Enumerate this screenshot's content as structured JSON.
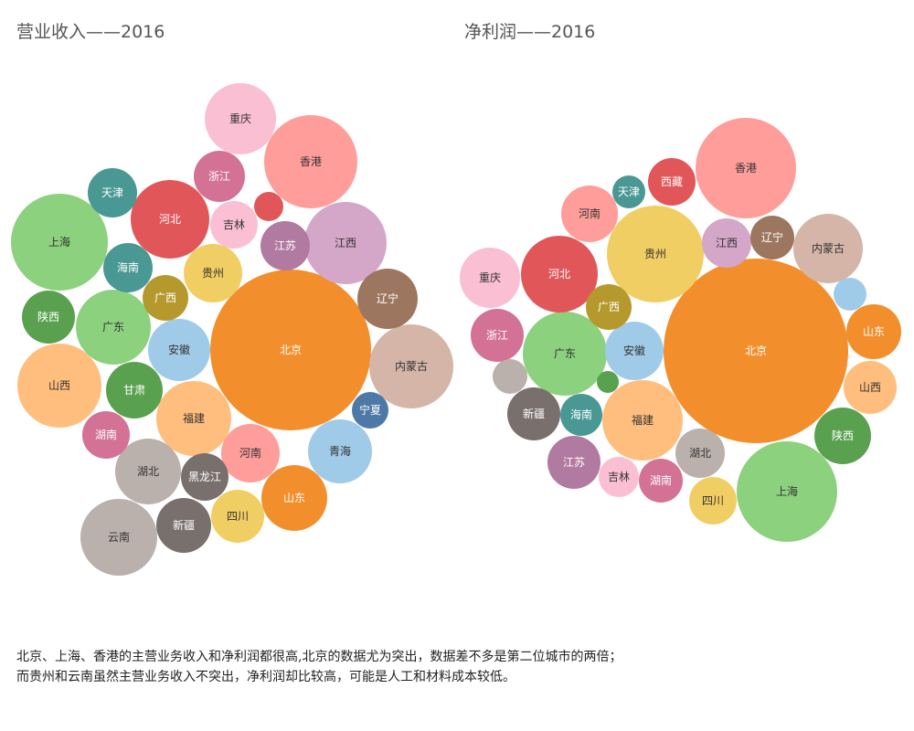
{
  "chart_data": [
    {
      "type": "bubble",
      "title": "营业收入——2016",
      "bubbles": [
        {
          "name": "北京",
          "color": "#f28e2b"
        },
        {
          "name": "香港",
          "color": "#ff9d9a"
        },
        {
          "name": "内蒙古",
          "color": "#d4b5a8"
        },
        {
          "name": "云南",
          "color": "#bab0ac"
        },
        {
          "name": "上海",
          "color": "#8cd17d"
        },
        {
          "name": "江西",
          "color": "#d4a6c8"
        },
        {
          "name": "重庆",
          "color": "#fabfd2"
        },
        {
          "name": "山西",
          "color": "#ffbe7d"
        },
        {
          "name": "河北",
          "color": "#e15759"
        },
        {
          "name": "广东",
          "color": "#8cd17d"
        },
        {
          "name": "福建",
          "color": "#ffbe7d"
        },
        {
          "name": "安徽",
          "color": "#a0cbe8"
        },
        {
          "name": "青海",
          "color": "#a0cbe8"
        },
        {
          "name": "山东",
          "color": "#f28e2b"
        },
        {
          "name": "湖北",
          "color": "#bab0ac"
        },
        {
          "name": "辽宁",
          "color": "#9d7660"
        },
        {
          "name": "河南",
          "color": "#ff9d9a"
        },
        {
          "name": "贵州",
          "color": "#f1ce63"
        },
        {
          "name": "甘肃",
          "color": "#59a14f"
        },
        {
          "name": "四川",
          "color": "#f1ce63"
        },
        {
          "name": "新疆",
          "color": "#79706e"
        },
        {
          "name": "海南",
          "color": "#499894"
        },
        {
          "name": "陕西",
          "color": "#59a14f"
        },
        {
          "name": "江苏",
          "color": "#b07aa1"
        },
        {
          "name": "浙江",
          "color": "#d37295"
        },
        {
          "name": "湖南",
          "color": "#d37295"
        },
        {
          "name": "黑龙江",
          "color": "#79706e"
        },
        {
          "name": "吉林",
          "color": "#fabfd2"
        },
        {
          "name": "天津",
          "color": "#499894"
        },
        {
          "name": "广西",
          "color": "#b6992d"
        },
        {
          "name": "宁夏",
          "color": "#4e79a7"
        },
        {
          "name": "",
          "color": "#e15759"
        }
      ]
    },
    {
      "type": "bubble",
      "title": "净利润——2016",
      "bubbles": [
        {
          "name": "北京",
          "color": "#f28e2b"
        },
        {
          "name": "上海",
          "color": "#8cd17d"
        },
        {
          "name": "香港",
          "color": "#ff9d9a"
        },
        {
          "name": "贵州",
          "color": "#f1ce63"
        },
        {
          "name": "广东",
          "color": "#8cd17d"
        },
        {
          "name": "福建",
          "color": "#ffbe7d"
        },
        {
          "name": "河北",
          "color": "#e15759"
        },
        {
          "name": "内蒙古",
          "color": "#d4b5a8"
        },
        {
          "name": "安徽",
          "color": "#a0cbe8"
        },
        {
          "name": "重庆",
          "color": "#fabfd2"
        },
        {
          "name": "陕西",
          "color": "#59a14f"
        },
        {
          "name": "河南",
          "color": "#ff9d9a"
        },
        {
          "name": "山东",
          "color": "#f28e2b"
        },
        {
          "name": "山西",
          "color": "#ffbe7d"
        },
        {
          "name": "浙江",
          "color": "#d37295"
        },
        {
          "name": "新疆",
          "color": "#79706e"
        },
        {
          "name": "江苏",
          "color": "#b07aa1"
        },
        {
          "name": "湖北",
          "color": "#bab0ac"
        },
        {
          "name": "江西",
          "color": "#d4a6c8"
        },
        {
          "name": "广西",
          "color": "#b6992d"
        },
        {
          "name": "四川",
          "color": "#f1ce63"
        },
        {
          "name": "湖南",
          "color": "#d37295"
        },
        {
          "name": "海南",
          "color": "#499894"
        },
        {
          "name": "西藏",
          "color": "#e15759"
        },
        {
          "name": "辽宁",
          "color": "#9d7660"
        },
        {
          "name": "吉林",
          "color": "#fabfd2"
        },
        {
          "name": "天津",
          "color": "#499894"
        },
        {
          "name": "",
          "color": "#bab0ac"
        },
        {
          "name": "",
          "color": "#a0cbe8"
        },
        {
          "name": "",
          "color": "#59a14f"
        }
      ]
    }
  ],
  "caption": {
    "line1": "北京、上海、香港的主营业务收入和净利润都很高,北京的数据尤为突出，数据差不多是第二位城市的两倍；",
    "line2": "而贵州和云南虽然主营业务收入不突出，净利润却比较高，可能是人工和材料成本较低。"
  }
}
